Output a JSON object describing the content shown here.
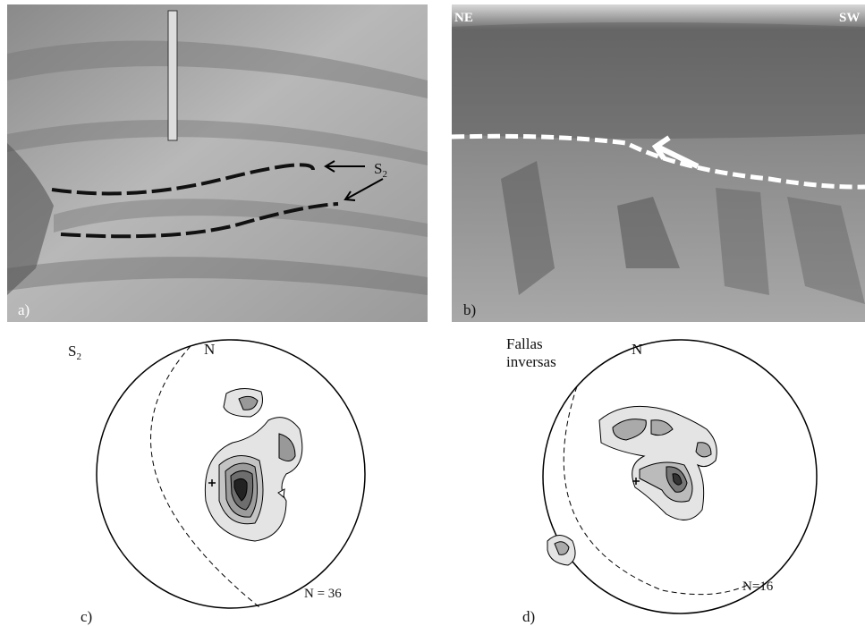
{
  "panels": [
    {
      "label": "a)",
      "annotation": {
        "main": "S",
        "sub": "2"
      }
    },
    {
      "label": "b)",
      "left_direction": "NE",
      "right_direction": "SW"
    },
    {
      "label": "c)",
      "title": {
        "main": "S",
        "sub": "2"
      },
      "north": "N",
      "count": "N = 36"
    },
    {
      "label": "d)",
      "title": [
        "Fallas",
        "inversas"
      ],
      "north": "N",
      "count": "N=16"
    }
  ]
}
